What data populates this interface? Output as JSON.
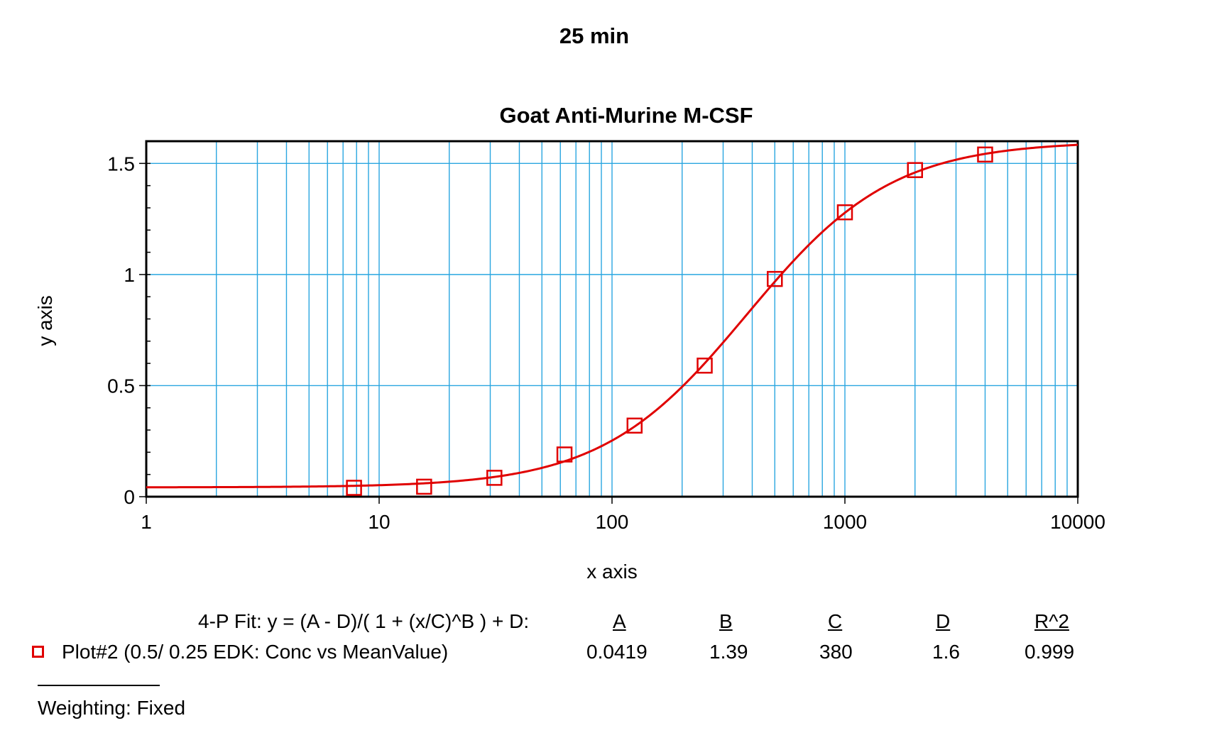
{
  "page_title": "25 min",
  "colors": {
    "grid": "#2aa6e0",
    "series": "#e00000",
    "axis": "#000000"
  },
  "chart_data": {
    "type": "scatter",
    "title": "Goat Anti-Murine M-CSF",
    "xlabel": "x axis",
    "ylabel": "y axis",
    "xscale": "log",
    "xlim": [
      1,
      10000
    ],
    "ylim": [
      0,
      1.6
    ],
    "xticks": [
      "1",
      "10",
      "100",
      "1000",
      "10000"
    ],
    "yticks": [
      "0",
      "0.5",
      "1",
      "1.5"
    ],
    "grid": true,
    "series": [
      {
        "name": "Plot#2 (0.5/ 0.25 EDK: Conc vs MeanValue)",
        "marker": "square",
        "x": [
          7.8,
          15.6,
          31.25,
          62.5,
          125,
          250,
          500,
          1000,
          2000,
          4000
        ],
        "y": [
          0.04,
          0.045,
          0.085,
          0.19,
          0.32,
          0.59,
          0.98,
          1.28,
          1.47,
          1.54
        ]
      }
    ],
    "fit": {
      "type": "4-parameter logistic",
      "A": 0.0419,
      "B": 1.39,
      "C": 380,
      "D": 1.6
    }
  },
  "fit_table": {
    "equation_label": "4-P Fit:  y = (A - D)/( 1 + (x/C)^B ) + D:",
    "headers": [
      "A",
      "B",
      "C",
      "D",
      "R^2"
    ],
    "row": {
      "label": "Plot#2 (0.5/ 0.25 EDK: Conc vs MeanValue)",
      "values": [
        "0.0419",
        "1.39",
        "380",
        "1.6",
        "0.999"
      ]
    }
  },
  "weighting": "Weighting: Fixed"
}
